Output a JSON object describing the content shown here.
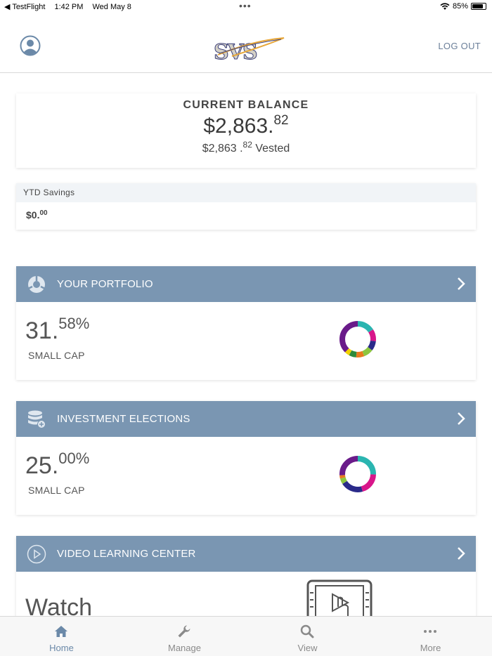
{
  "status_bar": {
    "carrier": "◀ TestFlight",
    "time": "1:42 PM",
    "date": "Wed May 8",
    "battery": "85%",
    "battery_level": 0.85
  },
  "header": {
    "logo_text": "SVS",
    "logout_label": "LOG OUT"
  },
  "balance": {
    "title": "CURRENT BALANCE",
    "amount_whole": "$2,863.",
    "amount_cents": "82",
    "vested_whole": "$2,863 .",
    "vested_cents": "82",
    "vested_suffix": " Vested"
  },
  "ytd": {
    "title": "YTD Savings",
    "value_whole": "$0.",
    "value_cents": "00"
  },
  "portfolio": {
    "title": "YOUR PORTFOLIO",
    "pct_whole": "31.",
    "pct_frac": "58%",
    "label": "SMALL CAP"
  },
  "elections": {
    "title": "INVESTMENT ELECTIONS",
    "pct_whole": "25.",
    "pct_frac": "00%",
    "label": "SMALL CAP"
  },
  "video": {
    "title": "VIDEO LEARNING CENTER",
    "watch_text": "Watch"
  },
  "tabs": [
    {
      "label": "Home",
      "icon": "home-icon",
      "active": true
    },
    {
      "label": "Manage",
      "icon": "wrench-icon",
      "active": false
    },
    {
      "label": "View",
      "icon": "search-icon",
      "active": false
    },
    {
      "label": "More",
      "icon": "more-icon",
      "active": false
    }
  ],
  "colors": {
    "section_header": "#7a96b2",
    "accent": "#6b89a8"
  }
}
